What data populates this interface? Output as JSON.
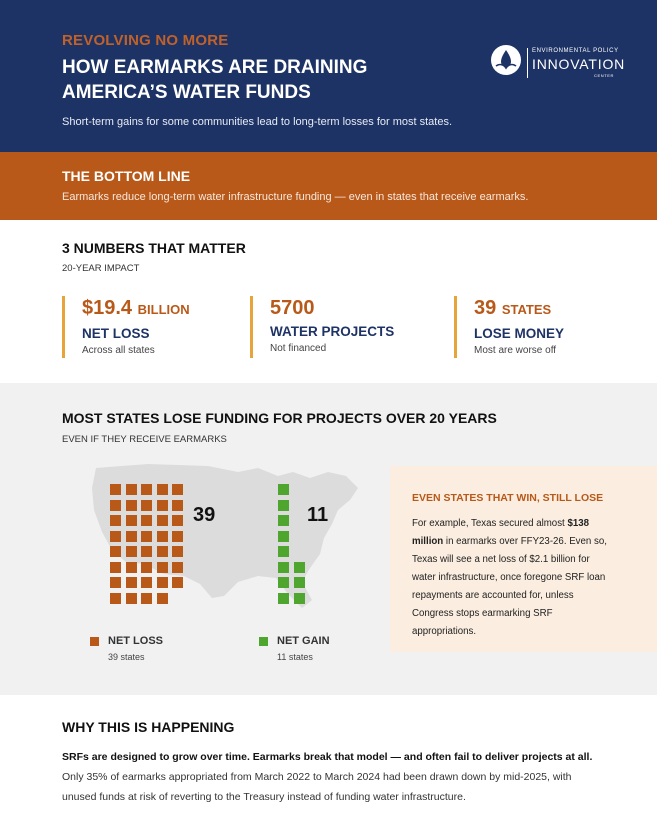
{
  "header": {
    "kicker": "REVOLVING NO MORE",
    "title": "HOW EARMARKS ARE DRAINING AMERICA’S WATER FUNDS",
    "subtitle": "Short-term gains for some communities lead to long-term losses for most states.",
    "logo": {
      "line1": "ENVIRONMENTAL POLICY",
      "line2": "INNOVATION",
      "line3": "CENTER"
    }
  },
  "bottom_line": {
    "title": "THE BOTTOM LINE",
    "text": "Earmarks reduce long-term water infrastructure funding — even in states that receive earmarks."
  },
  "numbers": {
    "heading": "3 NUMBERS THAT MATTER",
    "subheading": "20-YEAR IMPACT",
    "stats": [
      {
        "value": "$19.4",
        "unit": "BILLION",
        "label": "NET LOSS",
        "note": "Across all states"
      },
      {
        "value": "5700",
        "unit": "",
        "label": "WATER PROJECTS",
        "note": "Not financed"
      },
      {
        "value": "39",
        "unit": "STATES",
        "label": "LOSE MONEY",
        "note": "Most are worse off"
      }
    ]
  },
  "states_section": {
    "title": "MOST STATES LOSE FUNDING FOR PROJECTS OVER 20 YEARS",
    "subtitle": "EVEN IF THEY RECEIVE EARMARKS",
    "loss_count": "39",
    "gain_count": "11",
    "loss_value": 39,
    "gain_value": 11,
    "colors": {
      "loss": "#b85919",
      "gain": "#4ea62e",
      "accent": "#e7a43a"
    },
    "legend": [
      {
        "label": "NET LOSS",
        "note": "39 states"
      },
      {
        "label": "NET GAIN",
        "note": "11 states"
      }
    ],
    "callout": {
      "title": "EVEN STATES THAT WIN, STILL LOSE",
      "text_before": "For example, Texas secured almost ",
      "text_bold": "$138 million",
      "text_after": " in earmarks over FFY23-26. Even so, Texas will see a net loss of $2.1 billion for water infrastructure, once foregone SRF loan repayments are accounted for, unless Congress stops earmarking SRF appropriations."
    }
  },
  "why": {
    "title": "WHY THIS IS HAPPENING",
    "text_bold": "SRFs are designed to grow over time. Earmarks break that model — and often fail to deliver projects at all.",
    "text_rest": " Only 35% of earmarks appropriated from March 2022 to March 2024 had been drawn down by mid-2025, with unused funds at risk of reverting to the Treasury instead of funding water infrastructure."
  }
}
